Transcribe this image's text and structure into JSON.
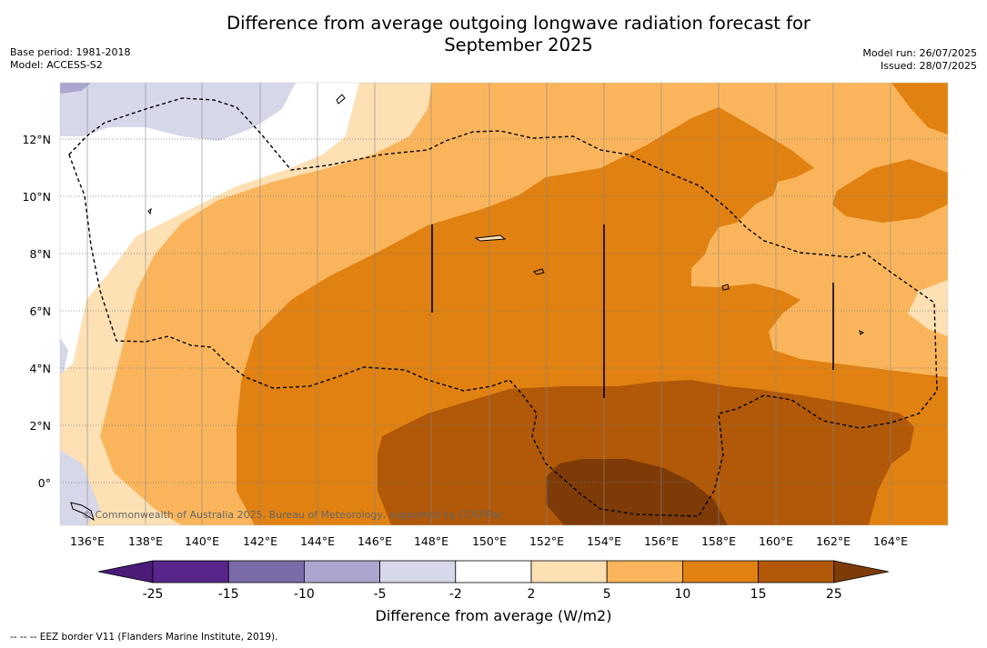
{
  "title": {
    "line1": "Difference from average outgoing longwave radiation forecast for",
    "line2": "September 2025"
  },
  "meta": {
    "base_period": "Base period: 1981-2018",
    "model": "Model: ACCESS-S2",
    "model_run": "Model run: 26/07/2025",
    "issued": "Issued: 28/07/2025"
  },
  "map": {
    "lon_range": [
      135,
      166
    ],
    "lat_range": [
      -1.5,
      14
    ],
    "x_ticks": [
      "136°E",
      "138°E",
      "140°E",
      "142°E",
      "144°E",
      "146°E",
      "148°E",
      "150°E",
      "152°E",
      "154°E",
      "156°E",
      "158°E",
      "160°E",
      "162°E",
      "164°E"
    ],
    "y_ticks": [
      "0°",
      "2°N",
      "4°N",
      "6°N",
      "8°N",
      "10°N",
      "12°N"
    ],
    "copyright": "© Commonwealth of Australia 2025, Bureau of Meteorology, supported by COSPPac"
  },
  "colorbar": {
    "labels": [
      "-25",
      "-15",
      "-10",
      "-5",
      "-2",
      "2",
      "5",
      "10",
      "15",
      "25"
    ],
    "colors": [
      "#4b1b7a",
      "#58268b",
      "#7b6ba8",
      "#aba6cf",
      "#d7d7ea",
      "#ffffff",
      "#fde0b4",
      "#fab55c",
      "#e08112",
      "#b15908",
      "#7e3b07"
    ],
    "title": "Difference from average (W/m2)"
  },
  "legend_note": "-- -- -- EEZ border V11 (Flanders Marine Institute, 2019)."
}
